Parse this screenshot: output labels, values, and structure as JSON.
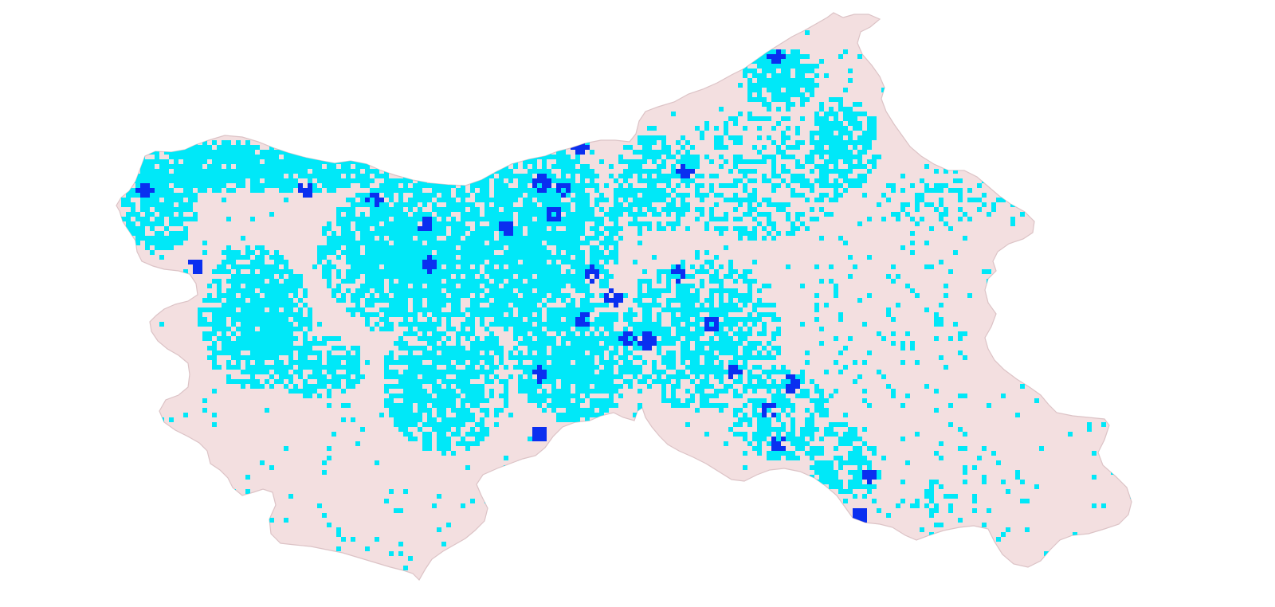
{
  "map": {
    "region_name": "",
    "colors": {
      "background": "#ffffff",
      "region_fill": "#f3dfe0",
      "region_stroke": "#dcc3c6",
      "class_moderate": "#00e8f8",
      "class_high": "#0a2ff0"
    },
    "classes": [
      {
        "key": "moderate",
        "color": "#00e8f8"
      },
      {
        "key": "high",
        "color": "#0a2ff0"
      }
    ],
    "legend_shown": false,
    "title_shown": false
  }
}
